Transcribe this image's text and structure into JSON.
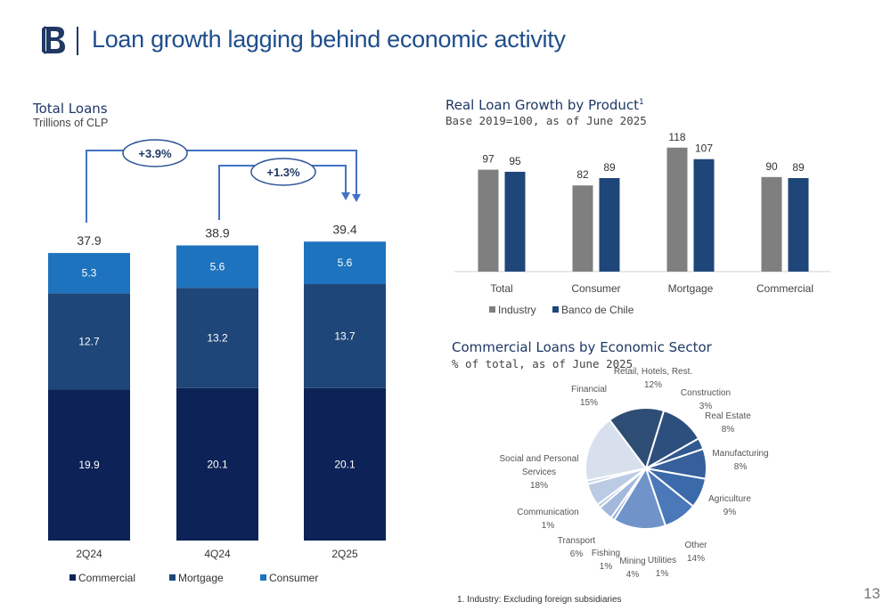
{
  "header": {
    "title": "Loan growth lagging behind economic activity",
    "logo_name": "banco-de-chile-logo"
  },
  "total_loans": {
    "title": "Total Loans",
    "subtitle": "Trillions of CLP",
    "growth_long": "+3.9%",
    "growth_short": "+1.3%",
    "chart_data": {
      "type": "bar",
      "stacked": true,
      "categories": [
        "2Q24",
        "4Q24",
        "2Q25"
      ],
      "totals": [
        "37.9",
        "38.9",
        "39.4"
      ],
      "series": [
        {
          "name": "Commercial",
          "values": [
            19.9,
            20.1,
            20.1
          ],
          "color": "#0d2257"
        },
        {
          "name": "Mortgage",
          "values": [
            12.7,
            13.2,
            13.7
          ],
          "color": "#1f4679"
        },
        {
          "name": "Consumer",
          "values": [
            5.3,
            5.6,
            5.6
          ],
          "color": "#1e73be"
        }
      ],
      "legend_position": "bottom-left"
    }
  },
  "real_growth": {
    "title": "Real Loan Growth by Product",
    "title_sup": "1",
    "subtitle": "Base 2019=100, as of June 2025",
    "chart_data": {
      "type": "bar",
      "categories": [
        "Total",
        "Consumer",
        "Mortgage",
        "Commercial"
      ],
      "ylim": [
        0,
        125
      ],
      "series": [
        {
          "name": "Industry",
          "values": [
            97,
            82,
            118,
            90
          ],
          "color": "#7f7f7f"
        },
        {
          "name": "Banco de Chile",
          "values": [
            95,
            89,
            107,
            89
          ],
          "color": "#1f4679"
        }
      ],
      "legend_position": "bottom"
    }
  },
  "sector": {
    "title": "Commercial Loans by Economic Sector",
    "subtitle": "% of total, as of June 2025",
    "chart_data": {
      "type": "pie",
      "slices": [
        {
          "label_lines": [
            "Retail, Hotels, Rest.",
            "12%"
          ],
          "value": 12,
          "color": "#2c4f7d"
        },
        {
          "label_lines": [
            "Construction",
            "3%"
          ],
          "value": 3,
          "color": "#31588f"
        },
        {
          "label_lines": [
            "Real Estate",
            "8%"
          ],
          "value": 8,
          "color": "#365f9b"
        },
        {
          "label_lines": [
            "Manufacturing",
            "8%"
          ],
          "value": 8,
          "color": "#3b6aab"
        },
        {
          "label_lines": [
            "Agriculture",
            "9%"
          ],
          "value": 9,
          "color": "#4a78b8"
        },
        {
          "label_lines": [
            "Other",
            "14%"
          ],
          "value": 14,
          "color": "#7094c9"
        },
        {
          "label_lines": [
            "Utilities",
            "1%"
          ],
          "value": 1,
          "color": "#8aa7d3"
        },
        {
          "label_lines": [
            "Mining",
            "4%"
          ],
          "value": 4,
          "color": "#a3b9dc"
        },
        {
          "label_lines": [
            "Fishing",
            "1%"
          ],
          "value": 1,
          "color": "#b5c6e2"
        },
        {
          "label_lines": [
            "Transport",
            "6%"
          ],
          "value": 6,
          "color": "#bccbe4"
        },
        {
          "label_lines": [
            "Communication",
            "1%"
          ],
          "value": 1,
          "color": "#c8d4ea"
        },
        {
          "label_lines": [
            "Social and Personal",
            "Services",
            "18%"
          ],
          "value": 18,
          "color": "#d8e0ee"
        },
        {
          "label_lines": [
            "Financial",
            "15%"
          ],
          "value": 15,
          "color": "#2d4d74"
        }
      ]
    }
  },
  "footnote": "1. Industry: Excluding foreign subsidiaries",
  "page_number": "13"
}
